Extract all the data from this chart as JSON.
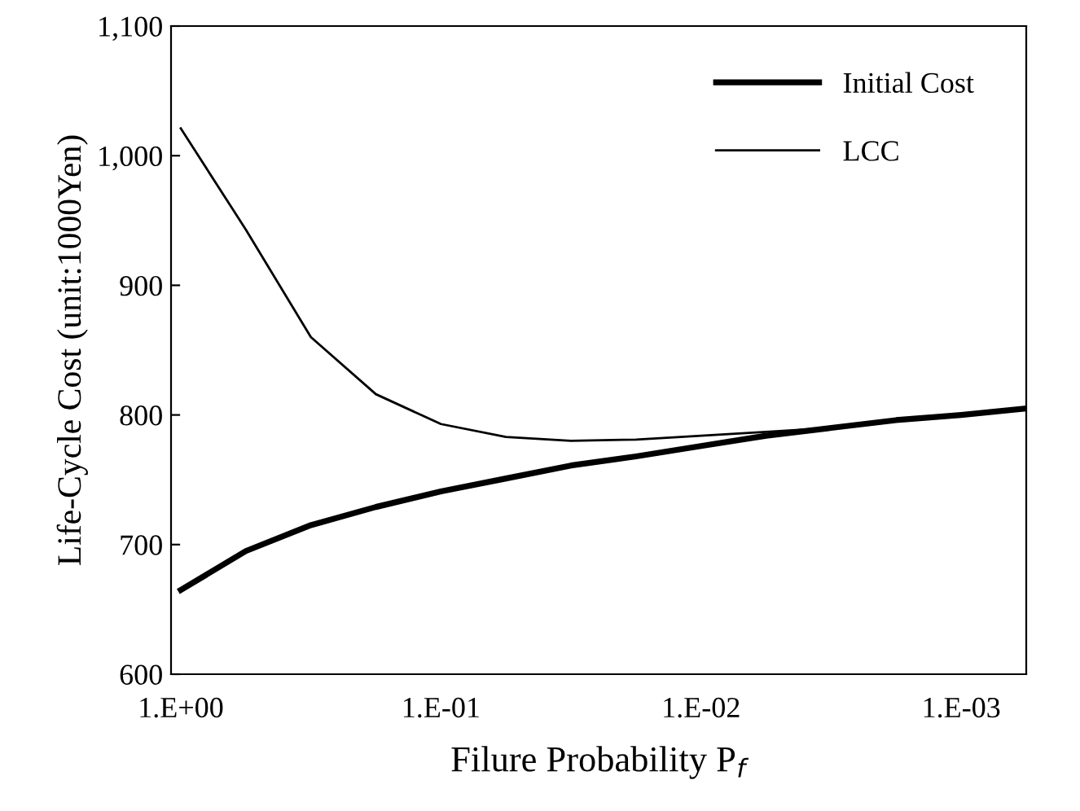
{
  "chart_data": {
    "type": "line",
    "xlabel": "Filure Probability P$_{f}$",
    "ylabel": "Life-Cycle Cost (unit:1000Yen)",
    "categories": [
      "1.E+00",
      null,
      null,
      null,
      "1.E-01",
      null,
      null,
      null,
      "1.E-02",
      null,
      null,
      null,
      "1.E-03",
      null
    ],
    "ylim": [
      600,
      1100
    ],
    "yticks": [
      600,
      700,
      800,
      900,
      {
        "value": 1000,
        "label": "1,000"
      },
      {
        "value": 1100,
        "label": "1,100"
      }
    ],
    "legend": "top right",
    "series": [
      {
        "name": "Initial Cost",
        "color": "#000000",
        "values": [
          665,
          695,
          715,
          729,
          741,
          751,
          761,
          768,
          776,
          784,
          790,
          796,
          800,
          805
        ]
      },
      {
        "name": "LCC",
        "color": "#000000",
        "values": [
          1021,
          943,
          860,
          816,
          793,
          783,
          780,
          781,
          784,
          787,
          790,
          796,
          800,
          805
        ]
      }
    ]
  }
}
